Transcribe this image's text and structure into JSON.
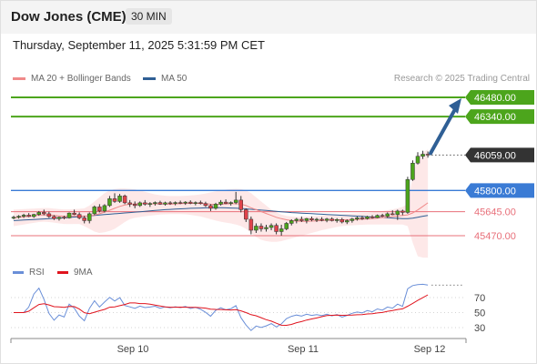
{
  "header": {
    "title": "Dow Jones (CME)",
    "interval": "30 MIN"
  },
  "datetime": "Thursday, September 11, 2025 5:31:59 PM CET",
  "legend": [
    {
      "label": "MA 20 + Bollinger Bands",
      "color": "#f08a8a"
    },
    {
      "label": "MA 50",
      "color": "#2f5f95"
    }
  ],
  "credit": "Research © 2025 Trading Central",
  "colors": {
    "resistance": "#4ca51c",
    "support": "#3a7bd5",
    "pivot": "#e8707a",
    "current": "#333333",
    "arrow": "#2f5f95",
    "up": "#4ca51c",
    "down": "#e0434b"
  },
  "levels": [
    {
      "label": "46480.00",
      "value": 46480,
      "kind": "resistance"
    },
    {
      "label": "46340.00",
      "value": 46340,
      "kind": "resistance"
    },
    {
      "label": "46059.00",
      "value": 46059,
      "kind": "current"
    },
    {
      "label": "45800.00",
      "value": 45800,
      "kind": "support"
    },
    {
      "label": "45645.00",
      "value": 45645,
      "kind": "pivot"
    },
    {
      "label": "45470.00",
      "value": 45470,
      "kind": "pivot"
    }
  ],
  "x_labels": [
    "Sep 10",
    "Sep 11",
    "Sep 12"
  ],
  "rsi": {
    "legend": [
      {
        "label": "RSI",
        "color": "#6a8fd8"
      },
      {
        "label": "9MA",
        "color": "#e0141e"
      }
    ],
    "ticks": [
      70,
      50,
      30
    ],
    "range": [
      10,
      90
    ]
  },
  "chart_data": {
    "type": "candlestick",
    "ylim": [
      45330,
      46560
    ],
    "current": 46059,
    "candles": [
      [
        45600,
        45615,
        45590,
        45605
      ],
      [
        45605,
        45620,
        45595,
        45612
      ],
      [
        45612,
        45630,
        45600,
        45620
      ],
      [
        45620,
        45635,
        45605,
        45610
      ],
      [
        45610,
        45630,
        45600,
        45625
      ],
      [
        45625,
        45650,
        45615,
        45640
      ],
      [
        45640,
        45660,
        45620,
        45630
      ],
      [
        45630,
        45645,
        45600,
        45610
      ],
      [
        45610,
        45620,
        45585,
        45595
      ],
      [
        45595,
        45610,
        45580,
        45605
      ],
      [
        45605,
        45615,
        45590,
        45600
      ],
      [
        45600,
        45640,
        45595,
        45635
      ],
      [
        45635,
        45660,
        45620,
        45625
      ],
      [
        45625,
        45640,
        45590,
        45600
      ],
      [
        45600,
        45615,
        45560,
        45580
      ],
      [
        45580,
        45640,
        45560,
        45630
      ],
      [
        45630,
        45690,
        45620,
        45680
      ],
      [
        45680,
        45700,
        45640,
        45650
      ],
      [
        45650,
        45700,
        45640,
        45690
      ],
      [
        45690,
        45760,
        45680,
        45740
      ],
      [
        45740,
        45780,
        45710,
        45720
      ],
      [
        45720,
        45775,
        45710,
        45760
      ],
      [
        45760,
        45770,
        45700,
        45710
      ],
      [
        45710,
        45730,
        45680,
        45700
      ],
      [
        45700,
        45720,
        45670,
        45690
      ],
      [
        45690,
        45720,
        45680,
        45710
      ],
      [
        45710,
        45730,
        45690,
        45700
      ],
      [
        45700,
        45715,
        45680,
        45705
      ],
      [
        45705,
        45720,
        45690,
        45712
      ],
      [
        45712,
        45725,
        45695,
        45700
      ],
      [
        45700,
        45718,
        45690,
        45710
      ],
      [
        45710,
        45722,
        45695,
        45705
      ],
      [
        45705,
        45720,
        45692,
        45712
      ],
      [
        45712,
        45726,
        45700,
        45708
      ],
      [
        45708,
        45722,
        45695,
        45715
      ],
      [
        45715,
        45728,
        45700,
        45706
      ],
      [
        45706,
        45720,
        45692,
        45712
      ],
      [
        45712,
        45726,
        45698,
        45704
      ],
      [
        45704,
        45718,
        45680,
        45690
      ],
      [
        45690,
        45700,
        45650,
        45670
      ],
      [
        45670,
        45710,
        45660,
        45700
      ],
      [
        45700,
        45730,
        45690,
        45715
      ],
      [
        45715,
        45735,
        45700,
        45705
      ],
      [
        45705,
        45720,
        45690,
        45712
      ],
      [
        45712,
        45790,
        45700,
        45730
      ],
      [
        45730,
        45760,
        45640,
        45660
      ],
      [
        45660,
        45670,
        45570,
        45590
      ],
      [
        45590,
        45610,
        45480,
        45510
      ],
      [
        45510,
        45560,
        45490,
        45540
      ],
      [
        45540,
        45560,
        45500,
        45520
      ],
      [
        45520,
        45550,
        45500,
        45530
      ],
      [
        45530,
        45560,
        45510,
        45545
      ],
      [
        45545,
        45560,
        45480,
        45500
      ],
      [
        45500,
        45550,
        45470,
        45520
      ],
      [
        45520,
        45570,
        45510,
        45560
      ],
      [
        45560,
        45590,
        45545,
        45580
      ],
      [
        45580,
        45600,
        45560,
        45590
      ],
      [
        45590,
        45610,
        45570,
        45580
      ],
      [
        45580,
        45600,
        45560,
        45595
      ],
      [
        45595,
        45610,
        45575,
        45585
      ],
      [
        45585,
        45600,
        45570,
        45590
      ],
      [
        45590,
        45605,
        45575,
        45582
      ],
      [
        45582,
        45600,
        45568,
        45592
      ],
      [
        45592,
        45604,
        45574,
        45580
      ],
      [
        45580,
        45598,
        45565,
        45588
      ],
      [
        45588,
        45600,
        45560,
        45570
      ],
      [
        45570,
        45590,
        45555,
        45580
      ],
      [
        45580,
        45600,
        45565,
        45592
      ],
      [
        45592,
        45610,
        45580,
        45600
      ],
      [
        45600,
        45615,
        45585,
        45595
      ],
      [
        45595,
        45615,
        45588,
        45608
      ],
      [
        45608,
        45620,
        45595,
        45602
      ],
      [
        45602,
        45625,
        45598,
        45618
      ],
      [
        45618,
        45630,
        45605,
        45612
      ],
      [
        45612,
        45640,
        45600,
        45630
      ],
      [
        45630,
        45655,
        45620,
        45625
      ],
      [
        45625,
        45660,
        45585,
        45650
      ],
      [
        45650,
        45660,
        45620,
        45640
      ],
      [
        45640,
        45900,
        45630,
        45880
      ],
      [
        45880,
        46020,
        45870,
        46000
      ],
      [
        46000,
        46080,
        45990,
        46050
      ],
      [
        46050,
        46090,
        46030,
        46065
      ],
      [
        46065,
        46085,
        46040,
        46059
      ]
    ],
    "ma50": [
      45580,
      45582,
      45584,
      45586,
      45588,
      45590,
      45592,
      45594,
      45596,
      45598,
      45600,
      45603,
      45606,
      45609,
      45612,
      45615,
      45618,
      45621,
      45624,
      45627,
      45630,
      45633,
      45636,
      45639,
      45642,
      45645,
      45648,
      45651,
      45654,
      45657,
      45660,
      45662,
      45664,
      45666,
      45668,
      45670,
      45671,
      45672,
      45673,
      45674,
      45674,
      45674,
      45673,
      45672,
      45671,
      45669,
      45666,
      45663,
      45660,
      45657,
      45654,
      45651,
      45648,
      45645,
      45642,
      45639,
      45637,
      45635,
      45633,
      45631,
      45629,
      45627,
      45625,
      45623,
      45621,
      45619,
      45617,
      45615,
      45613,
      45611,
      45609,
      45607,
      45605,
      45603,
      45601,
      45599,
      45597,
      45595,
      45594,
      45598,
      45605,
      45612,
      45618
    ],
    "ma20": [
      45600,
      45604,
      45608,
      45612,
      45616,
      45620,
      45622,
      45621,
      45618,
      45615,
      45612,
      45612,
      45614,
      45614,
      45612,
      45614,
      45620,
      45630,
      45642,
      45656,
      45670,
      45684,
      45694,
      45700,
      45702,
      45704,
      45704,
      45703,
      45702,
      45702,
      45701,
      45700,
      45702,
      45704,
      45705,
      45706,
      45706,
      45706,
      45704,
      45700,
      45698,
      45700,
      45702,
      45703,
      45704,
      45700,
      45690,
      45674,
      45660,
      45646,
      45632,
      45618,
      45604,
      45594,
      45586,
      45580,
      45576,
      45574,
      45574,
      45576,
      45578,
      45580,
      45582,
      45584,
      45586,
      45586,
      45586,
      45586,
      45588,
      45590,
      45592,
      45594,
      45598,
      45602,
      45606,
      45610,
      45614,
      45618,
      45622,
      45636,
      45658,
      45684,
      45710
    ],
    "bb_upper": [
      45660,
      45662,
      45664,
      45666,
      45668,
      45670,
      45672,
      45672,
      45668,
      45664,
      45662,
      45662,
      45664,
      45666,
      45670,
      45690,
      45720,
      45750,
      45780,
      45800,
      45810,
      45815,
      45815,
      45812,
      45808,
      45800,
      45790,
      45780,
      45772,
      45766,
      45762,
      45760,
      45760,
      45760,
      45762,
      45764,
      45768,
      45772,
      45778,
      45786,
      45794,
      45800,
      45806,
      45810,
      45812,
      45810,
      45800,
      45780,
      45750,
      45720,
      45690,
      45660,
      45640,
      45625,
      45615,
      45610,
      45608,
      45608,
      45610,
      45612,
      45615,
      45618,
      45620,
      45622,
      45624,
      45626,
      45628,
      45630,
      45632,
      45634,
      45636,
      45640,
      45644,
      45650,
      45656,
      45662,
      45670,
      45680,
      45700,
      45900,
      46050,
      46080,
      46100
    ],
    "bb_lower": [
      45540,
      45546,
      45552,
      45558,
      45564,
      45570,
      45572,
      45570,
      45566,
      45560,
      45556,
      45555,
      45556,
      45556,
      45540,
      45520,
      45500,
      45490,
      45495,
      45505,
      45520,
      45545,
      45570,
      45590,
      45600,
      45606,
      45612,
      45616,
      45620,
      45624,
      45626,
      45628,
      45628,
      45628,
      45626,
      45622,
      45616,
      45610,
      45600,
      45590,
      45580,
      45572,
      45566,
      45560,
      45552,
      45540,
      45520,
      45490,
      45460,
      45440,
      45430,
      45425,
      45425,
      45430,
      45440,
      45450,
      45460,
      45470,
      45480,
      45490,
      45500,
      45510,
      45518,
      45526,
      45534,
      45540,
      45544,
      45546,
      45548,
      45550,
      45552,
      45552,
      45552,
      45552,
      45552,
      45552,
      45552,
      45552,
      45540,
      45420,
      45320,
      45310,
      45310
    ]
  }
}
